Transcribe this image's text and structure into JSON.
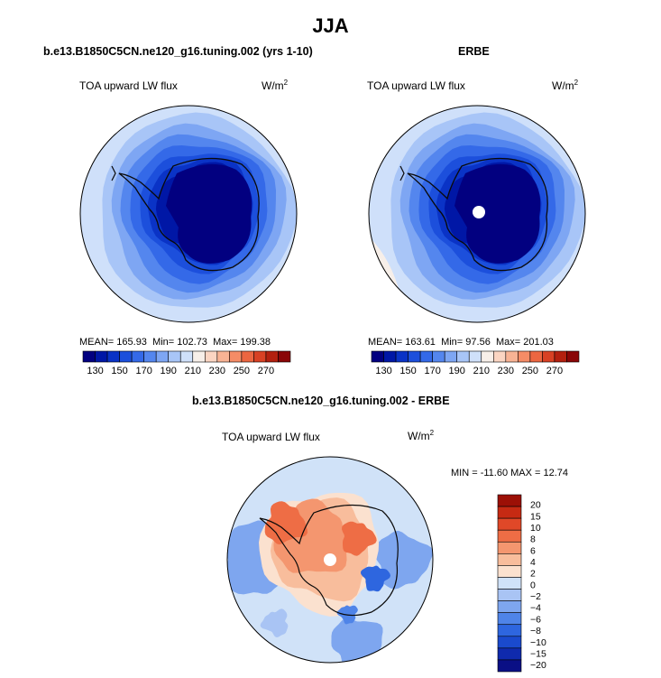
{
  "figure": {
    "title": "JJA",
    "colors": {
      "land": "#0a0a0a",
      "abs_ramp": [
        "#020080",
        "#0017a6",
        "#0a33c6",
        "#1c4fdc",
        "#3469e8",
        "#5486ee",
        "#7ea6f3",
        "#a8c5f7",
        "#cfe0fa",
        "#f7efe9",
        "#fbd5c2",
        "#f8b394",
        "#f58c66",
        "#ec6641",
        "#d84124",
        "#b3200f",
        "#8a0607"
      ],
      "diff_ramp": [
        "#0a0f85",
        "#0f2aad",
        "#1a4acd",
        "#2e66df",
        "#4f84e8",
        "#7ea6ef",
        "#a9c4f4",
        "#d0e2f8",
        "#fbe1cf",
        "#f8bd9c",
        "#f4966f",
        "#ee6d45",
        "#e04828",
        "#c62a13",
        "#9c1006"
      ]
    }
  },
  "chart_data": [
    {
      "type": "heatmap",
      "panel_title": "b.e13.B1850C5CN.ne120_g16.tuning.002 (yrs 1-10)",
      "left_label": "TOA upward LW flux",
      "right_label": "W/m",
      "right_label_sup": "2",
      "projection": "polar stereographic, south pole",
      "stats": {
        "mean_label": "MEAN=",
        "mean": "165.93",
        "min_label": "Min=",
        "min": "102.73",
        "max_label": "Max=",
        "max": "199.38"
      },
      "colorbar": {
        "tick_labels": [
          "130",
          "150",
          "170",
          "190",
          "210",
          "230",
          "250",
          "270"
        ],
        "levels": [
          130,
          140,
          150,
          160,
          170,
          180,
          190,
          200,
          210,
          220,
          230,
          240,
          250,
          260,
          270
        ]
      }
    },
    {
      "type": "heatmap",
      "panel_title": "ERBE",
      "left_label": "TOA upward LW flux",
      "right_label": "W/m",
      "right_label_sup": "2",
      "projection": "polar stereographic, south pole",
      "stats": {
        "mean_label": "MEAN=",
        "mean": "163.61",
        "min_label": "Min=",
        "min": "97.56",
        "max_label": "Max=",
        "max": "201.03"
      },
      "colorbar": {
        "tick_labels": [
          "130",
          "150",
          "170",
          "190",
          "210",
          "230",
          "250",
          "270"
        ],
        "levels": [
          130,
          140,
          150,
          160,
          170,
          180,
          190,
          200,
          210,
          220,
          230,
          240,
          250,
          260,
          270
        ]
      }
    },
    {
      "type": "heatmap",
      "panel_title": "b.e13.B1850C5CN.ne120_g16.tuning.002 - ERBE",
      "left_label": "TOA upward LW flux",
      "right_label": "W/m",
      "right_label_sup": "2",
      "projection": "polar stereographic, south pole",
      "stats_line": "MIN = -11.60 MAX =  12.74",
      "colorbar": {
        "tick_labels": [
          "20",
          "15",
          "10",
          "8",
          "6",
          "4",
          "2",
          "0",
          "−2",
          "−4",
          "−6",
          "−8",
          "−10",
          "−15",
          "−20"
        ],
        "levels": [
          20,
          15,
          10,
          8,
          6,
          4,
          2,
          0,
          -2,
          -4,
          -6,
          -8,
          -10,
          -15,
          -20
        ]
      }
    }
  ]
}
